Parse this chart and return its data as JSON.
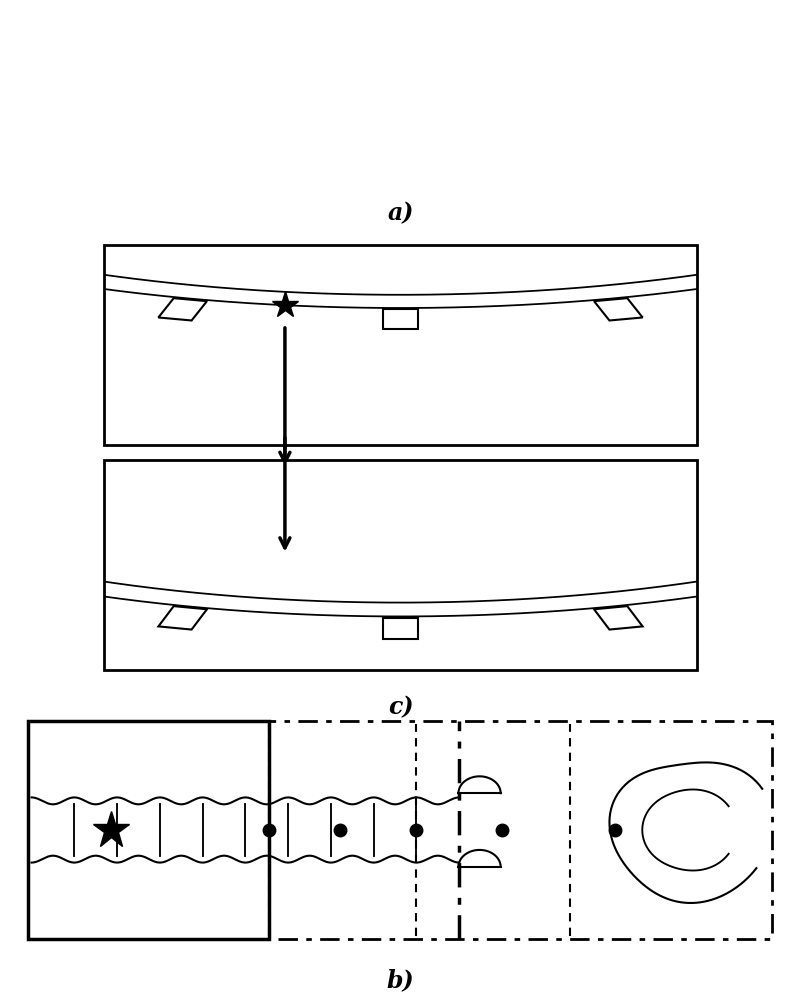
{
  "title_a": "a)",
  "title_b": "b)",
  "title_c": "c)",
  "bg_color": "#ffffff",
  "line_color": "#000000",
  "figure_width": 8.01,
  "figure_height": 10.0
}
